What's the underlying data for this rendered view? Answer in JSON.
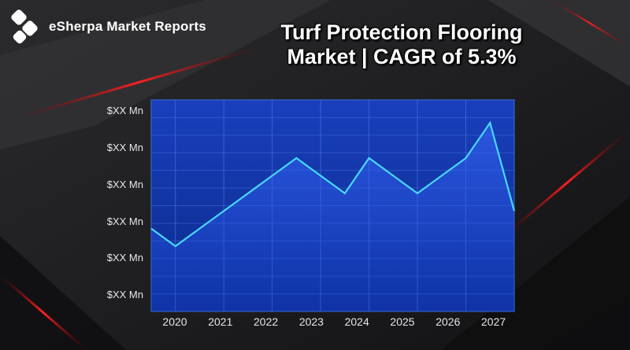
{
  "brand": {
    "name": "eSherpa Market Reports"
  },
  "header": {
    "title_line1": "Turf Protection Flooring",
    "title_line2": "Market | CAGR of 5.3%"
  },
  "colors": {
    "plot_fill_top": "#1a3fbd",
    "plot_fill_bottom": "#0a2a8a",
    "line": "#48d8ff",
    "grid": "#3f6dd8"
  },
  "chart_data": {
    "type": "line",
    "title": "Turf Protection Flooring Market | CAGR of 5.3%",
    "y_tick_labels": [
      "$XX Mn",
      "$XX Mn",
      "$XX Mn",
      "$XX Mn",
      "$XX Mn",
      "$XX Mn"
    ],
    "categories": [
      "2020",
      "2021",
      "2022",
      "2023",
      "2024",
      "2025",
      "2026",
      "2027"
    ],
    "x": [
      2019.85,
      2020.35,
      2020.85,
      2021.35,
      2021.85,
      2022.35,
      2022.85,
      2023.35,
      2023.85,
      2024.35,
      2024.85,
      2025.35,
      2025.85,
      2026.35,
      2026.85,
      2027.35
    ],
    "values": [
      2.35,
      1.85,
      2.35,
      2.85,
      3.35,
      3.85,
      4.35,
      3.85,
      3.35,
      4.35,
      3.85,
      3.35,
      3.85,
      4.35,
      5.35,
      2.85
    ],
    "ylim": [
      0,
      6
    ],
    "grid": true
  }
}
